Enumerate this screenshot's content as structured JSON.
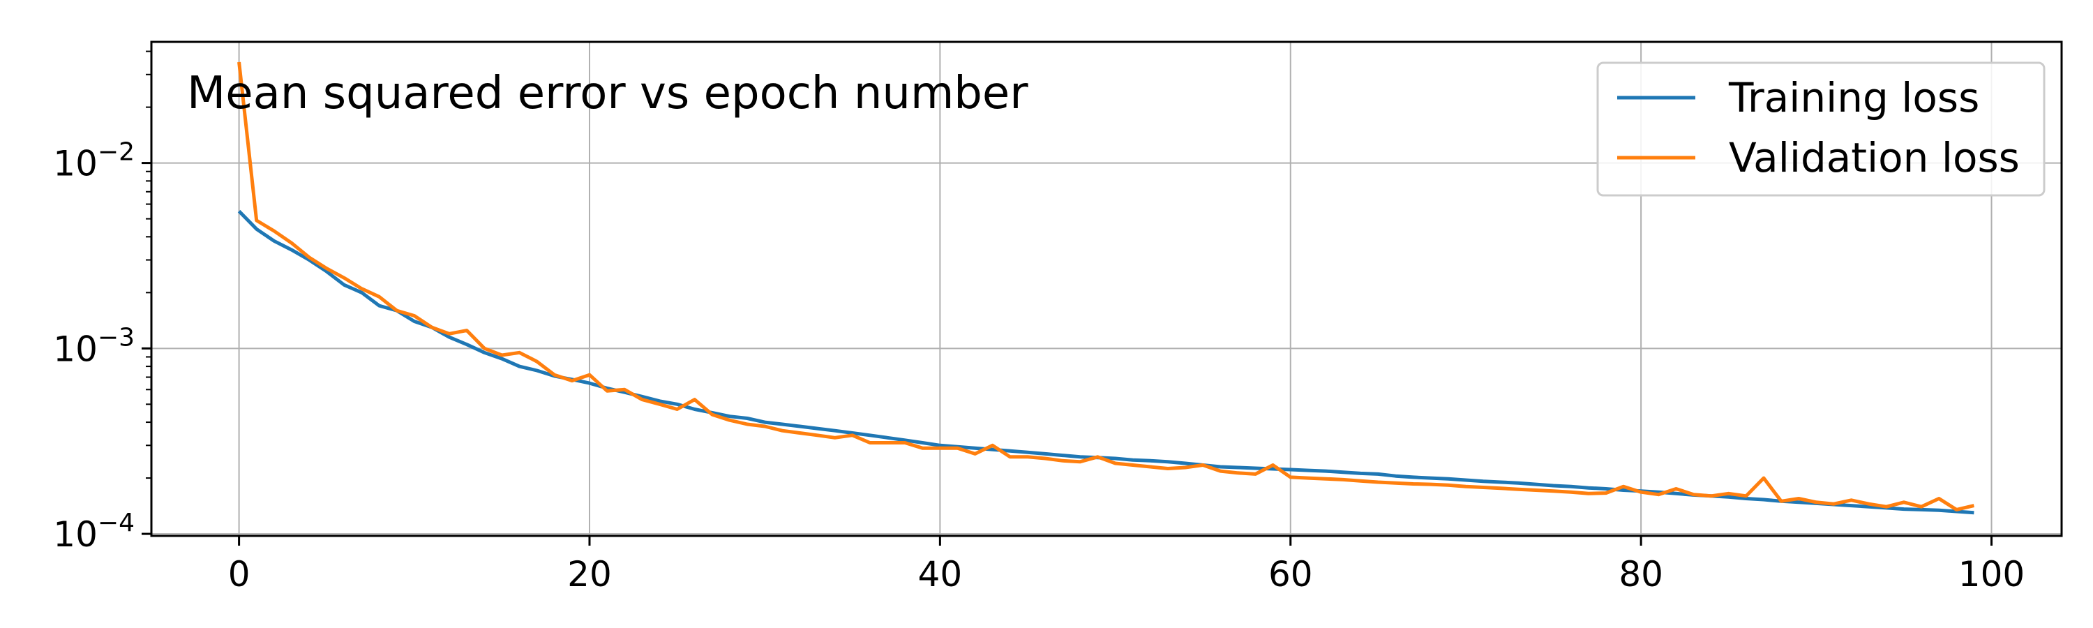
{
  "chart_data": {
    "type": "line",
    "title": "Mean squared error vs epoch number",
    "xlabel": "",
    "ylabel": "",
    "xlim": [
      -5,
      104
    ],
    "ylim": [
      9.75e-05,
      0.045
    ],
    "yscale": "log",
    "grid": true,
    "legend_position": "top-right",
    "x_ticks": [
      {
        "value": 0,
        "label": "0"
      },
      {
        "value": 20,
        "label": "20"
      },
      {
        "value": 40,
        "label": "40"
      },
      {
        "value": 60,
        "label": "60"
      },
      {
        "value": 80,
        "label": "80"
      },
      {
        "value": 100,
        "label": "100"
      }
    ],
    "y_ticks": [
      {
        "value": 0.01,
        "base": "10",
        "exp": "−2"
      },
      {
        "value": 0.001,
        "base": "10",
        "exp": "−3"
      },
      {
        "value": 0.0001,
        "base": "10",
        "exp": "−4"
      }
    ],
    "series": [
      {
        "name": "Training loss",
        "color": "#1f77b4",
        "x": [
          0,
          1,
          2,
          3,
          4,
          5,
          6,
          7,
          8,
          9,
          10,
          11,
          12,
          13,
          14,
          15,
          16,
          17,
          18,
          19,
          20,
          21,
          22,
          23,
          24,
          25,
          26,
          27,
          28,
          29,
          30,
          31,
          32,
          33,
          34,
          35,
          36,
          37,
          38,
          39,
          40,
          41,
          42,
          43,
          44,
          45,
          46,
          47,
          48,
          49,
          50,
          51,
          52,
          53,
          54,
          55,
          56,
          57,
          58,
          59,
          60,
          61,
          62,
          63,
          64,
          65,
          66,
          67,
          68,
          69,
          70,
          71,
          72,
          73,
          74,
          75,
          76,
          77,
          78,
          79,
          80,
          81,
          82,
          83,
          84,
          85,
          86,
          87,
          88,
          89,
          90,
          91,
          92,
          93,
          94,
          95,
          96,
          97,
          98,
          99
        ],
        "values": [
          0.0055,
          0.0044,
          0.0038,
          0.0034,
          0.003,
          0.0026,
          0.0022,
          0.002,
          0.0017,
          0.0016,
          0.0014,
          0.0013,
          0.00115,
          0.00105,
          0.00095,
          0.00088,
          0.0008,
          0.00076,
          0.00071,
          0.00068,
          0.00065,
          0.00061,
          0.00058,
          0.00055,
          0.00052,
          0.0005,
          0.00047,
          0.00045,
          0.00043,
          0.00042,
          0.0004,
          0.00039,
          0.00038,
          0.00037,
          0.00036,
          0.00035,
          0.00034,
          0.00033,
          0.00032,
          0.00031,
          0.0003,
          0.000295,
          0.00029,
          0.000285,
          0.00028,
          0.000275,
          0.00027,
          0.000265,
          0.00026,
          0.000258,
          0.000255,
          0.00025,
          0.000248,
          0.000245,
          0.00024,
          0.000235,
          0.00023,
          0.000228,
          0.000226,
          0.000224,
          0.000222,
          0.00022,
          0.000218,
          0.000215,
          0.000212,
          0.00021,
          0.000205,
          0.000202,
          0.0002,
          0.000198,
          0.000195,
          0.000192,
          0.00019,
          0.000188,
          0.000185,
          0.000182,
          0.00018,
          0.000177,
          0.000175,
          0.000172,
          0.00017,
          0.000168,
          0.000165,
          0.000162,
          0.00016,
          0.000158,
          0.000155,
          0.000153,
          0.00015,
          0.000148,
          0.000146,
          0.000144,
          0.000142,
          0.00014,
          0.000138,
          0.000136,
          0.000135,
          0.000134,
          0.000132,
          0.00013
        ]
      },
      {
        "name": "Validation loss",
        "color": "#ff7f0e",
        "x": [
          0,
          1,
          2,
          3,
          4,
          5,
          6,
          7,
          8,
          9,
          10,
          11,
          12,
          13,
          14,
          15,
          16,
          17,
          18,
          19,
          20,
          21,
          22,
          23,
          24,
          25,
          26,
          27,
          28,
          29,
          30,
          31,
          32,
          33,
          34,
          35,
          36,
          37,
          38,
          39,
          40,
          41,
          42,
          43,
          44,
          45,
          46,
          47,
          48,
          49,
          50,
          51,
          52,
          53,
          54,
          55,
          56,
          57,
          58,
          59,
          60,
          61,
          62,
          63,
          64,
          65,
          66,
          67,
          68,
          69,
          70,
          71,
          72,
          73,
          74,
          75,
          76,
          77,
          78,
          79,
          80,
          81,
          82,
          83,
          84,
          85,
          86,
          87,
          88,
          89,
          90,
          91,
          92,
          93,
          94,
          95,
          96,
          97,
          98,
          99
        ],
        "values": [
          0.035,
          0.0049,
          0.0043,
          0.0037,
          0.0031,
          0.0027,
          0.0024,
          0.0021,
          0.0019,
          0.0016,
          0.0015,
          0.0013,
          0.0012,
          0.00125,
          0.001,
          0.00092,
          0.00095,
          0.00085,
          0.00072,
          0.00067,
          0.00072,
          0.00059,
          0.0006,
          0.00053,
          0.0005,
          0.00047,
          0.00053,
          0.00044,
          0.00041,
          0.00039,
          0.00038,
          0.00036,
          0.00035,
          0.00034,
          0.00033,
          0.00034,
          0.00031,
          0.00031,
          0.00031,
          0.00029,
          0.00029,
          0.00029,
          0.00027,
          0.0003,
          0.00026,
          0.00026,
          0.000255,
          0.000248,
          0.000245,
          0.00026,
          0.00024,
          0.000235,
          0.00023,
          0.000225,
          0.000228,
          0.000235,
          0.000218,
          0.000213,
          0.00021,
          0.000235,
          0.000202,
          0.0002,
          0.000198,
          0.000196,
          0.000193,
          0.00019,
          0.000188,
          0.000186,
          0.000185,
          0.000183,
          0.00018,
          0.000178,
          0.000176,
          0.000174,
          0.000172,
          0.00017,
          0.000168,
          0.000165,
          0.000166,
          0.00018,
          0.000168,
          0.000163,
          0.000175,
          0.000163,
          0.00016,
          0.000165,
          0.00016,
          0.0002,
          0.00015,
          0.000155,
          0.000148,
          0.000145,
          0.000152,
          0.000145,
          0.00014,
          0.000148,
          0.00014,
          0.000155,
          0.000135,
          0.000142
        ]
      }
    ]
  }
}
